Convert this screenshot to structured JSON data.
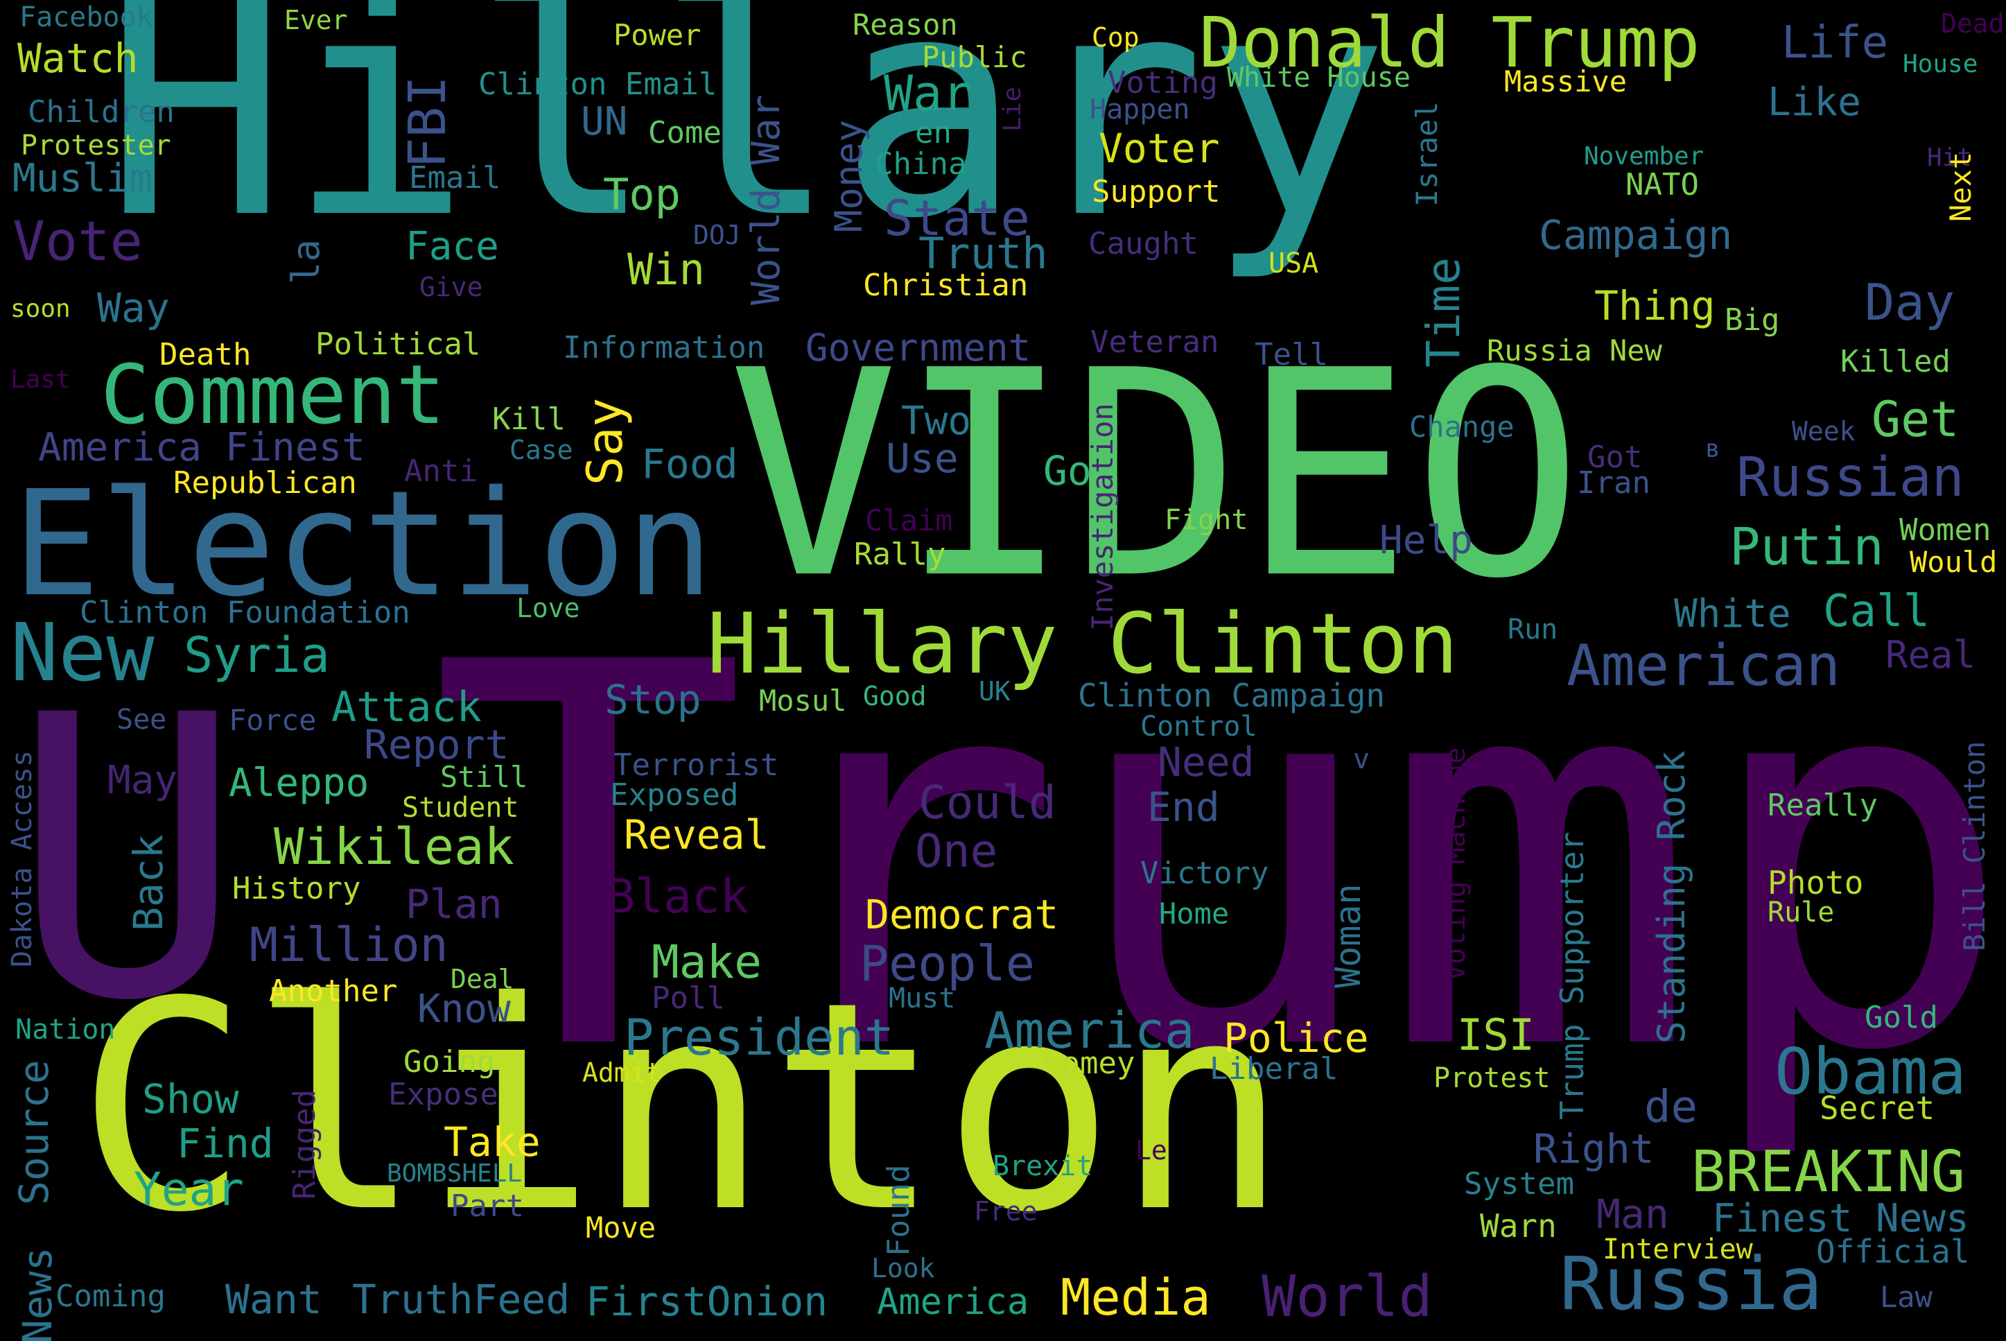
{
  "words": [
    {
      "id": "hillary",
      "text": "Hillary",
      "color": "#21908d"
    },
    {
      "id": "video",
      "text": "VIDEO",
      "color": "#52c569"
    },
    {
      "id": "trump",
      "text": "Trump",
      "color": "#440154"
    },
    {
      "id": "u",
      "text": "U",
      "color": "#471164"
    },
    {
      "id": "clinton",
      "text": "Clinton",
      "color": "#bddf26"
    },
    {
      "id": "election",
      "text": "Election",
      "color": "#31688e"
    },
    {
      "id": "donald-trump",
      "text": "Donald Trump",
      "color": "#a0da39"
    },
    {
      "id": "hillary-clinton",
      "text": "Hillary Clinton",
      "color": "#a0da39"
    },
    {
      "id": "comment",
      "text": "Comment",
      "color": "#35b779"
    },
    {
      "id": "new",
      "text": "New",
      "color": "#26828e"
    },
    {
      "id": "russia",
      "text": "Russia",
      "color": "#31688e"
    },
    {
      "id": "obama",
      "text": "Obama",
      "color": "#2a788e"
    },
    {
      "id": "breaking",
      "text": "BREAKING",
      "color": "#86d549"
    },
    {
      "id": "american",
      "text": "American",
      "color": "#3b528b"
    },
    {
      "id": "president",
      "text": "President",
      "color": "#2a788e"
    },
    {
      "id": "america",
      "text": "America",
      "color": "#2a788e"
    },
    {
      "id": "world",
      "text": "World",
      "color": "#482173"
    },
    {
      "id": "people",
      "text": "People",
      "color": "#3e4989"
    },
    {
      "id": "russian",
      "text": "Russian",
      "color": "#3e4989"
    },
    {
      "id": "putin",
      "text": "Putin",
      "color": "#35b779"
    },
    {
      "id": "day",
      "text": "Day",
      "color": "#3b528b"
    },
    {
      "id": "vote",
      "text": "Vote",
      "color": "#482475"
    },
    {
      "id": "wikileak",
      "text": "Wikileak",
      "color": "#86d549"
    },
    {
      "id": "million",
      "text": "Million",
      "color": "#414487"
    },
    {
      "id": "syria",
      "text": "Syria",
      "color": "#1f9e89"
    },
    {
      "id": "media",
      "text": "Media",
      "color": "#fde725"
    },
    {
      "id": "state",
      "text": "State",
      "color": "#3e4989"
    },
    {
      "id": "truth",
      "text": "Truth",
      "color": "#2a788e"
    },
    {
      "id": "life",
      "text": "Life",
      "color": "#3b528b"
    },
    {
      "id": "watch",
      "text": "Watch",
      "color": "#b5de2b"
    },
    {
      "id": "muslim",
      "text": "Muslim",
      "color": "#2a788e"
    },
    {
      "id": "children",
      "text": "Children",
      "color": "#2c728e"
    },
    {
      "id": "protester",
      "text": "Protester",
      "color": "#a8db34"
    },
    {
      "id": "facebook",
      "text": "Facebook",
      "color": "#2a788e"
    },
    {
      "id": "ever",
      "text": "Ever",
      "color": "#8fd744"
    },
    {
      "id": "power",
      "text": "Power",
      "color": "#b8de29"
    },
    {
      "id": "reason",
      "text": "Reason",
      "color": "#84d44b"
    },
    {
      "id": "public",
      "text": "Public",
      "color": "#a5db36"
    },
    {
      "id": "cop",
      "text": "Cop",
      "color": "#fde725"
    },
    {
      "id": "dead",
      "text": "Dead",
      "color": "#440154"
    },
    {
      "id": "house",
      "text": "House",
      "color": "#20a386"
    },
    {
      "id": "fbi",
      "text": "FBI",
      "color": "#3b528b"
    },
    {
      "id": "clinton-email",
      "text": "Clinton Email",
      "color": "#21918c"
    },
    {
      "id": "un",
      "text": "UN",
      "color": "#31688e"
    },
    {
      "id": "come",
      "text": "Come",
      "color": "#5ec962"
    },
    {
      "id": "war",
      "text": "War",
      "color": "#20a386"
    },
    {
      "id": "world-war",
      "text": "World War",
      "color": "#3b528b"
    },
    {
      "id": "money",
      "text": "Money",
      "color": "#3b528b"
    },
    {
      "id": "en",
      "text": "en",
      "color": "#22a884"
    },
    {
      "id": "china",
      "text": "China",
      "color": "#1f9e89"
    },
    {
      "id": "voting",
      "text": "Voting",
      "color": "#472d7b"
    },
    {
      "id": "white-house",
      "text": "White House",
      "color": "#5ec962"
    },
    {
      "id": "lie",
      "text": "Lie",
      "color": "#481a6c"
    },
    {
      "id": "massive",
      "text": "Massive",
      "color": "#fde725"
    },
    {
      "id": "happen",
      "text": "Happen",
      "color": "#3b528b"
    },
    {
      "id": "israel",
      "text": "Israel",
      "color": "#2a788e"
    },
    {
      "id": "november",
      "text": "November",
      "color": "#1f9e89"
    },
    {
      "id": "hit",
      "text": "Hit",
      "color": "#482878"
    },
    {
      "id": "like",
      "text": "Like",
      "color": "#2c728e"
    },
    {
      "id": "nato",
      "text": "NATO",
      "color": "#7ad151"
    },
    {
      "id": "next",
      "text": "Next",
      "color": "#fde725"
    },
    {
      "id": "email",
      "text": "Email",
      "color": "#2a788e"
    },
    {
      "id": "top",
      "text": "Top",
      "color": "#5ec962"
    },
    {
      "id": "voter",
      "text": "Voter",
      "color": "#d8e219"
    },
    {
      "id": "support",
      "text": "Support",
      "color": "#fde725"
    },
    {
      "id": "face",
      "text": "Face",
      "color": "#1f9e89"
    },
    {
      "id": "la",
      "text": "la",
      "color": "#31688e"
    },
    {
      "id": "doj",
      "text": "DOJ",
      "color": "#3b528b"
    },
    {
      "id": "caught",
      "text": "Caught",
      "color": "#472d7b"
    },
    {
      "id": "campaign",
      "text": "Campaign",
      "color": "#31688e"
    },
    {
      "id": "win",
      "text": "Win",
      "color": "#a5db36"
    },
    {
      "id": "give",
      "text": "Give",
      "color": "#482878"
    },
    {
      "id": "christian",
      "text": "Christian",
      "color": "#fde725"
    },
    {
      "id": "usa",
      "text": "USA",
      "color": "#d5e21a"
    },
    {
      "id": "time",
      "text": "Time",
      "color": "#26828e"
    },
    {
      "id": "way",
      "text": "Way",
      "color": "#2c728e"
    },
    {
      "id": "soon",
      "text": "soon",
      "color": "#b5de2b"
    },
    {
      "id": "thing",
      "text": "Thing",
      "color": "#b8de29"
    },
    {
      "id": "big",
      "text": "Big",
      "color": "#84d44b"
    },
    {
      "id": "death",
      "text": "Death",
      "color": "#fde725"
    },
    {
      "id": "political",
      "text": "Political",
      "color": "#a0da39"
    },
    {
      "id": "information",
      "text": "Information",
      "color": "#2c728e"
    },
    {
      "id": "government",
      "text": "Government",
      "color": "#3e4989"
    },
    {
      "id": "veteran",
      "text": "Veteran",
      "color": "#472d7b"
    },
    {
      "id": "tell",
      "text": "Tell",
      "color": "#3b528b"
    },
    {
      "id": "russia-new",
      "text": "Russia New",
      "color": "#a0da39"
    },
    {
      "id": "killed",
      "text": "Killed",
      "color": "#73d056"
    },
    {
      "id": "last",
      "text": "Last",
      "color": "#440154"
    },
    {
      "id": "say",
      "text": "Say",
      "color": "#fde725"
    },
    {
      "id": "kill",
      "text": "Kill",
      "color": "#86d549"
    },
    {
      "id": "case",
      "text": "Case",
      "color": "#2a788e"
    },
    {
      "id": "two",
      "text": "Two",
      "color": "#2a788e"
    },
    {
      "id": "use",
      "text": "Use",
      "color": "#3b528b"
    },
    {
      "id": "get",
      "text": "Get",
      "color": "#5ec962"
    },
    {
      "id": "investigation",
      "text": "Investigation",
      "color": "#482475"
    },
    {
      "id": "change",
      "text": "Change",
      "color": "#2c728e"
    },
    {
      "id": "week",
      "text": "Week",
      "color": "#3b528b"
    },
    {
      "id": "america-finest",
      "text": "America Finest",
      "color": "#414487"
    },
    {
      "id": "anti",
      "text": "Anti",
      "color": "#482475"
    },
    {
      "id": "republican",
      "text": "Republican",
      "color": "#fde725"
    },
    {
      "id": "food",
      "text": "Food",
      "color": "#2a788e"
    },
    {
      "id": "go",
      "text": "Go",
      "color": "#35b779"
    },
    {
      "id": "got",
      "text": "Got",
      "color": "#472d7b"
    },
    {
      "id": "iran",
      "text": "Iran",
      "color": "#3b528b"
    },
    {
      "id": "v-cyr",
      "text": "в",
      "color": "#3b528b"
    },
    {
      "id": "fight",
      "text": "Fight",
      "color": "#84d44b"
    },
    {
      "id": "claim",
      "text": "Claim",
      "color": "#440154"
    },
    {
      "id": "help",
      "text": "Help",
      "color": "#3e4989"
    },
    {
      "id": "women",
      "text": "Women",
      "color": "#73d056"
    },
    {
      "id": "would",
      "text": "Would",
      "color": "#fde725"
    },
    {
      "id": "rally",
      "text": "Rally",
      "color": "#a8db34"
    },
    {
      "id": "clinton-foundation",
      "text": "Clinton Foundation",
      "color": "#2c728e"
    },
    {
      "id": "love",
      "text": "Love",
      "color": "#4ac16d"
    },
    {
      "id": "white",
      "text": "White",
      "color": "#2a788e"
    },
    {
      "id": "call",
      "text": "Call",
      "color": "#20a386"
    },
    {
      "id": "run",
      "text": "Run",
      "color": "#2a788e"
    },
    {
      "id": "real",
      "text": "Real",
      "color": "#482878"
    },
    {
      "id": "attack",
      "text": "Attack",
      "color": "#1f9e89"
    },
    {
      "id": "stop",
      "text": "Stop",
      "color": "#2c728e"
    },
    {
      "id": "mosul",
      "text": "Mosul",
      "color": "#7ad151"
    },
    {
      "id": "good",
      "text": "Good",
      "color": "#35b779"
    },
    {
      "id": "uk",
      "text": "UK",
      "color": "#26828e"
    },
    {
      "id": "clinton-campaign",
      "text": "Clinton Campaign",
      "color": "#2c728e"
    },
    {
      "id": "see",
      "text": "See",
      "color": "#3b528b"
    },
    {
      "id": "force",
      "text": "Force",
      "color": "#3b528b"
    },
    {
      "id": "report",
      "text": "Report",
      "color": "#3e4989"
    },
    {
      "id": "control",
      "text": "Control",
      "color": "#2a788e"
    },
    {
      "id": "dakota-access",
      "text": "Dakota Access",
      "color": "#3b528b"
    },
    {
      "id": "may",
      "text": "May",
      "color": "#482475"
    },
    {
      "id": "aleppo",
      "text": "Aleppo",
      "color": "#35b779"
    },
    {
      "id": "still",
      "text": "Still",
      "color": "#5ec962"
    },
    {
      "id": "terrorist",
      "text": "Terrorist",
      "color": "#3b528b"
    },
    {
      "id": "v",
      "text": "v",
      "color": "#3b528b"
    },
    {
      "id": "standing-rock",
      "text": "Standing Rock",
      "color": "#2c728e"
    },
    {
      "id": "bill-clinton",
      "text": "Bill Clinton",
      "color": "#3b528b"
    },
    {
      "id": "student",
      "text": "Student",
      "color": "#b5de2b"
    },
    {
      "id": "exposed",
      "text": "Exposed",
      "color": "#26828e"
    },
    {
      "id": "need",
      "text": "Need",
      "color": "#472d7b"
    },
    {
      "id": "could",
      "text": "Could",
      "color": "#482878"
    },
    {
      "id": "really",
      "text": "Really",
      "color": "#5ec962"
    },
    {
      "id": "end",
      "text": "End",
      "color": "#3b528b"
    },
    {
      "id": "reveal",
      "text": "Reveal",
      "color": "#fde725"
    },
    {
      "id": "one",
      "text": "One",
      "color": "#482878"
    },
    {
      "id": "back",
      "text": "Back",
      "color": "#2a788e"
    },
    {
      "id": "history",
      "text": "History",
      "color": "#b5de2b"
    },
    {
      "id": "plan",
      "text": "Plan",
      "color": "#482878"
    },
    {
      "id": "black",
      "text": "Black",
      "color": "#440154"
    },
    {
      "id": "voting-machine",
      "text": "Voting Machine",
      "color": "#440154"
    },
    {
      "id": "trump-supporter",
      "text": "Trump Supporter",
      "color": "#2a788e"
    },
    {
      "id": "victory",
      "text": "Victory",
      "color": "#2a788e"
    },
    {
      "id": "photo",
      "text": "Photo",
      "color": "#b5de2b"
    },
    {
      "id": "rule",
      "text": "Rule",
      "color": "#a0da39"
    },
    {
      "id": "democrat",
      "text": "Democrat",
      "color": "#fde725"
    },
    {
      "id": "home",
      "text": "Home",
      "color": "#22a884"
    },
    {
      "id": "woman",
      "text": "Woman",
      "color": "#2c728e"
    },
    {
      "id": "make",
      "text": "Make",
      "color": "#5ec962"
    },
    {
      "id": "another",
      "text": "Another",
      "color": "#fde725"
    },
    {
      "id": "deal",
      "text": "Deal",
      "color": "#7ad151"
    },
    {
      "id": "know",
      "text": "Know",
      "color": "#3b528b"
    },
    {
      "id": "poll",
      "text": "Poll",
      "color": "#482878"
    },
    {
      "id": "must",
      "text": "Must",
      "color": "#2c728e"
    },
    {
      "id": "nation",
      "text": "Nation",
      "color": "#20a386"
    },
    {
      "id": "police",
      "text": "Police",
      "color": "#fde725"
    },
    {
      "id": "isi",
      "text": "ISI",
      "color": "#a0da39"
    },
    {
      "id": "gold",
      "text": "Gold",
      "color": "#35b779"
    },
    {
      "id": "source",
      "text": "Source",
      "color": "#2c728e"
    },
    {
      "id": "going",
      "text": "Going",
      "color": "#a0da39"
    },
    {
      "id": "admit",
      "text": "Admit",
      "color": "#d8e219"
    },
    {
      "id": "comey",
      "text": "Comey",
      "color": "#b5de2b"
    },
    {
      "id": "liberal",
      "text": "Liberal",
      "color": "#2c728e"
    },
    {
      "id": "protest",
      "text": "Protest",
      "color": "#a8db34"
    },
    {
      "id": "show",
      "text": "Show",
      "color": "#1f9e89"
    },
    {
      "id": "expose",
      "text": "Expose",
      "color": "#472d7b"
    },
    {
      "id": "rigged",
      "text": "Rigged",
      "color": "#482475"
    },
    {
      "id": "de",
      "text": "de",
      "color": "#3b528b"
    },
    {
      "id": "secret",
      "text": "Secret",
      "color": "#b8de29"
    },
    {
      "id": "find",
      "text": "Find",
      "color": "#1f9e89"
    },
    {
      "id": "take",
      "text": "Take",
      "color": "#fde725"
    },
    {
      "id": "right",
      "text": "Right",
      "color": "#3b528b"
    },
    {
      "id": "year",
      "text": "Year",
      "color": "#20a386"
    },
    {
      "id": "bombshell",
      "text": "BOMBSHELL",
      "color": "#26828e"
    },
    {
      "id": "brexit",
      "text": "Brexit",
      "color": "#20a386"
    },
    {
      "id": "le",
      "text": "Le",
      "color": "#440154"
    },
    {
      "id": "system",
      "text": "System",
      "color": "#26828e"
    },
    {
      "id": "part",
      "text": "Part",
      "color": "#3e4989"
    },
    {
      "id": "found",
      "text": "Found",
      "color": "#2c728e"
    },
    {
      "id": "free",
      "text": "Free",
      "color": "#472d7b"
    },
    {
      "id": "man",
      "text": "Man",
      "color": "#482878"
    },
    {
      "id": "finest-news",
      "text": "Finest News",
      "color": "#2c728e"
    },
    {
      "id": "news",
      "text": "News",
      "color": "#2c728e"
    },
    {
      "id": "move",
      "text": "Move",
      "color": "#fde725"
    },
    {
      "id": "warn",
      "text": "Warn",
      "color": "#a0da39"
    },
    {
      "id": "interview",
      "text": "Interview",
      "color": "#d8e219"
    },
    {
      "id": "official",
      "text": "Official",
      "color": "#2c728e"
    },
    {
      "id": "coming",
      "text": "Coming",
      "color": "#2a788e"
    },
    {
      "id": "want",
      "text": "Want",
      "color": "#2c728e"
    },
    {
      "id": "truthfeed",
      "text": "TruthFeed",
      "color": "#2c728e"
    },
    {
      "id": "firstonion",
      "text": "FirstOnion",
      "color": "#26828e"
    },
    {
      "id": "america-2",
      "text": "America",
      "color": "#20a386"
    },
    {
      "id": "look",
      "text": "Look",
      "color": "#2c728e"
    },
    {
      "id": "law",
      "text": "Law",
      "color": "#3b528b"
    }
  ]
}
